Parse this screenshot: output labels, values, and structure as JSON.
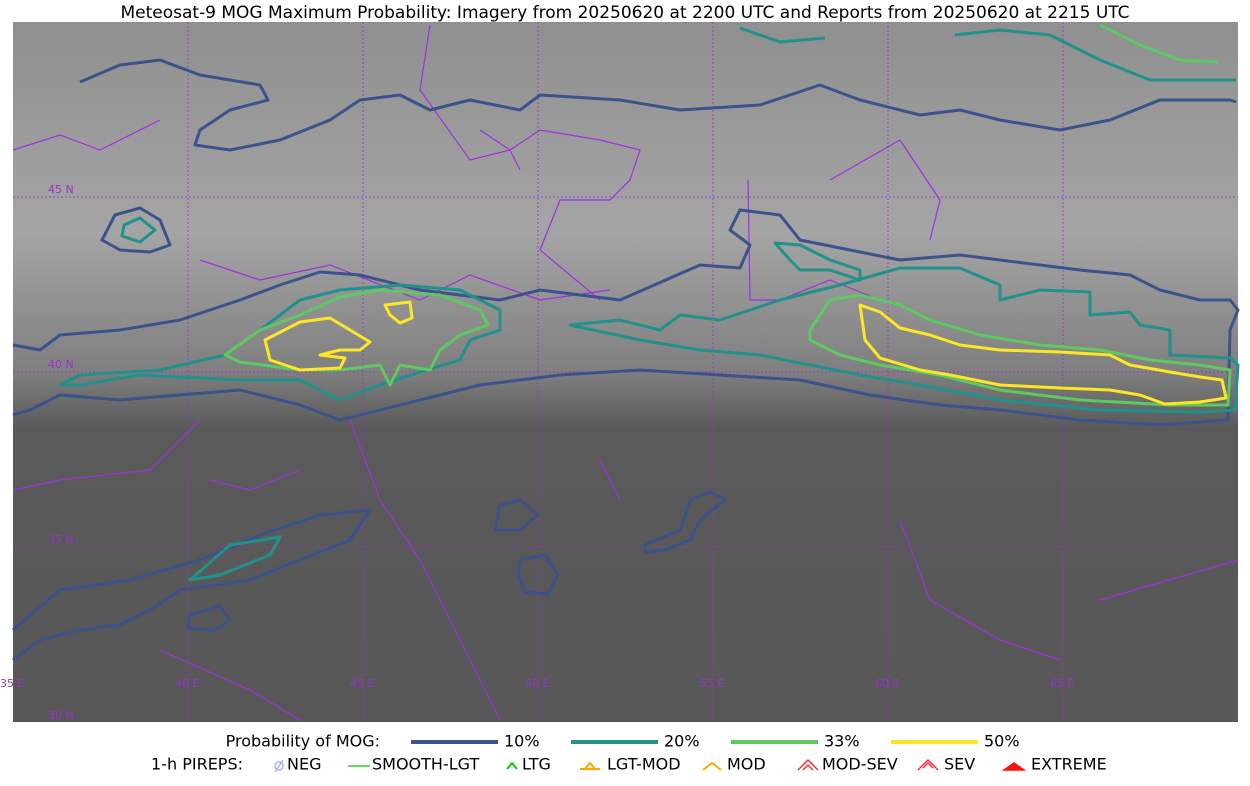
{
  "title": "Meteosat-9 MOG Maximum Probability: Imagery from 20250620 at 2200 UTC and Reports from 20250620 at 2215 UTC",
  "map": {
    "lat_labels": [
      "45 N",
      "40 N",
      "35 N",
      "30 N"
    ],
    "lon_labels": [
      "35 E",
      "40 E",
      "45 E",
      "50 E",
      "55 E",
      "60 E",
      "65 E"
    ]
  },
  "legend": {
    "probability": {
      "title": "Probability of MOG:",
      "items": [
        {
          "label": "10%",
          "color": "#3b528b"
        },
        {
          "label": "20%",
          "color": "#21918c"
        },
        {
          "label": "33%",
          "color": "#5ec962"
        },
        {
          "label": "50%",
          "color": "#fde725"
        }
      ]
    },
    "pireps": {
      "title": "1-h PIREPS:",
      "items": [
        "NEG",
        "SMOOTH-LGT",
        "LTG",
        "LGT-MOD",
        "MOD",
        "MOD-SEV",
        "SEV",
        "EXTREME"
      ]
    }
  }
}
